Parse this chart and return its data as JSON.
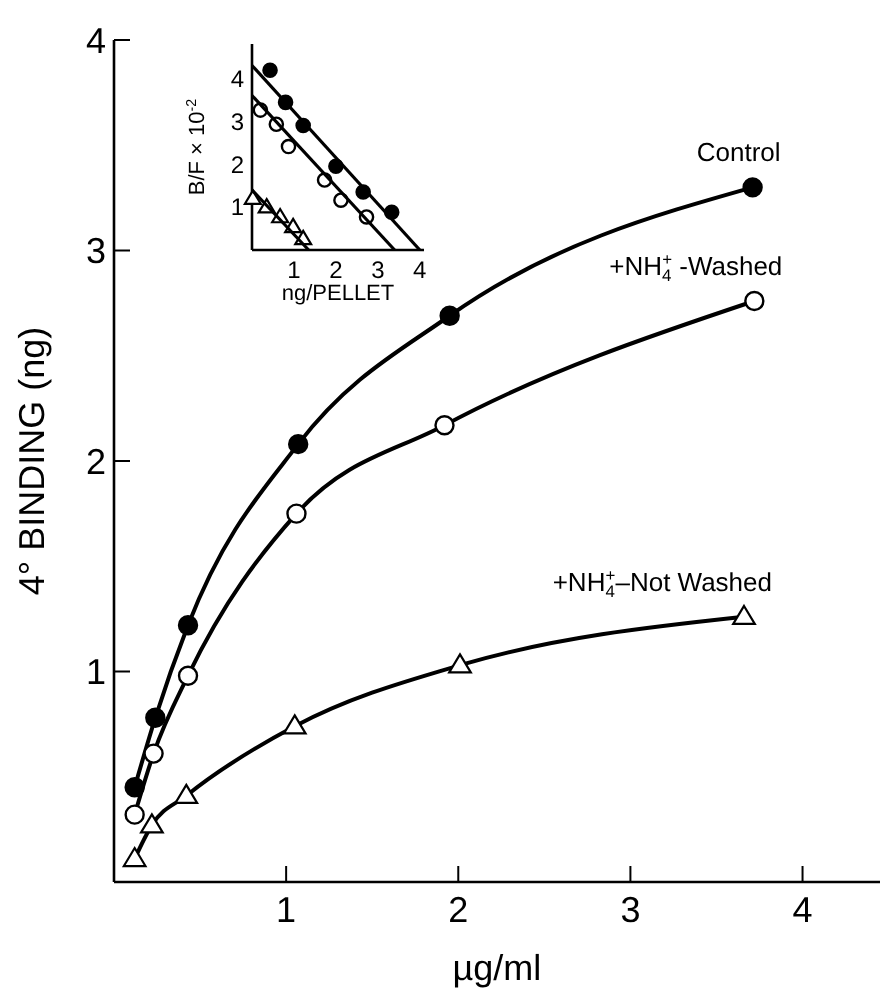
{
  "chart_data": [
    {
      "type": "line",
      "xlabel": "µg/ml",
      "ylabel": "4° BINDING (ng)",
      "xlim": [
        0,
        4.45
      ],
      "ylim": [
        0,
        4
      ],
      "xticks": [
        1,
        2,
        3,
        4
      ],
      "yticks": [
        1,
        2,
        3,
        4
      ],
      "series": [
        {
          "name": "Control",
          "color": "#000000",
          "marker": "circle",
          "x": [
            0.12,
            0.24,
            0.43,
            1.07,
            1.95,
            3.71
          ],
          "values": [
            0.45,
            0.78,
            1.22,
            2.08,
            2.69,
            3.3
          ]
        },
        {
          "name": "+NH$_{4}$$^{+}$ -Washed",
          "color": "#ffffff",
          "marker": "circle",
          "x": [
            0.12,
            0.23,
            0.43,
            1.06,
            1.92,
            3.72
          ],
          "values": [
            0.32,
            0.61,
            0.98,
            1.75,
            2.17,
            2.76
          ]
        },
        {
          "name": "+NH$_{4}$$^{+}$–Not Washed",
          "color": "#ffffff",
          "marker": "triangle",
          "x": [
            0.12,
            0.22,
            0.42,
            1.05,
            2.01,
            3.66
          ],
          "values": [
            0.11,
            0.27,
            0.41,
            0.74,
            1.03,
            1.26
          ]
        }
      ]
    },
    {
      "type": "scatter",
      "xlabel": "ng/PELLET",
      "ylabel": "B/F × 10$^{-2}$",
      "xlim": [
        0,
        4.1
      ],
      "ylim": [
        0,
        4.8
      ],
      "xticks": [
        1,
        2,
        3,
        4
      ],
      "yticks": [
        1,
        2,
        3,
        4
      ],
      "series": [
        {
          "color": "#000000",
          "marker": "circle",
          "x": [
            0.43,
            0.8,
            1.22,
            2.0,
            2.65,
            3.33
          ],
          "values": [
            4.19,
            3.44,
            2.9,
            1.95,
            1.35,
            0.88
          ]
        },
        {
          "color": "#ffffff",
          "marker": "circle",
          "x": [
            0.2,
            0.58,
            0.87,
            1.73,
            2.12,
            2.73
          ],
          "values": [
            3.26,
            2.93,
            2.41,
            1.63,
            1.16,
            0.77
          ]
        },
        {
          "color": "#ffffff",
          "marker": "triangle",
          "x": [
            0.02,
            0.35,
            0.67,
            0.98,
            1.22
          ],
          "values": [
            1.2,
            1.0,
            0.77,
            0.54,
            0.26
          ]
        },
        {
          "type": "line",
          "color": "#000000",
          "marker": "none",
          "x": [
            0,
            4.0
          ],
          "values": [
            4.3,
            0
          ]
        },
        {
          "type": "line",
          "color": "#000000",
          "marker": "none",
          "x": [
            0,
            3.4
          ],
          "values": [
            3.6,
            0
          ]
        },
        {
          "type": "line",
          "color": "#000000",
          "marker": "none",
          "x": [
            0,
            1.35
          ],
          "values": [
            1.4,
            0
          ]
        }
      ]
    }
  ]
}
